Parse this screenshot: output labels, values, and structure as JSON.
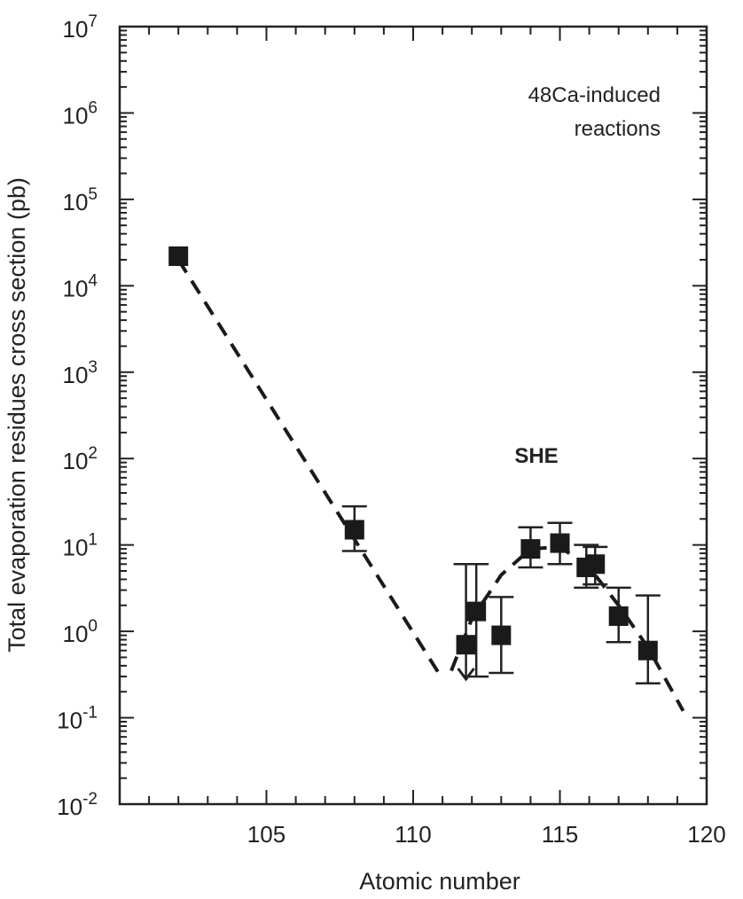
{
  "chart_data": {
    "type": "scatter",
    "xlabel": "Atomic number",
    "ylabel": "Total evaporation residues cross section  (pb)",
    "xlim": [
      100,
      120
    ],
    "ylim_log10": [
      -2,
      7
    ],
    "log_y": true,
    "x_ticks": [
      {
        "value": 105,
        "label": "105"
      },
      {
        "value": 110,
        "label": "110"
      },
      {
        "value": 115,
        "label": "115"
      },
      {
        "value": 120,
        "label": "120"
      }
    ],
    "y_ticks": [
      {
        "exp": 7,
        "base": "10",
        "sup": "7"
      },
      {
        "exp": 6,
        "base": "10",
        "sup": "6"
      },
      {
        "exp": 5,
        "base": "10",
        "sup": "5"
      },
      {
        "exp": 4,
        "base": "10",
        "sup": "4"
      },
      {
        "exp": 3,
        "base": "10",
        "sup": "3"
      },
      {
        "exp": 2,
        "base": "10",
        "sup": "2"
      },
      {
        "exp": 1,
        "base": "10",
        "sup": "1"
      },
      {
        "exp": 0,
        "base": "10",
        "sup": "0"
      },
      {
        "exp": -1,
        "base": "10",
        "sup": "-1"
      },
      {
        "exp": -2,
        "base": "10",
        "sup": "-2"
      }
    ],
    "points": [
      {
        "x": 102,
        "y": 22000
      },
      {
        "x": 108,
        "y": 15,
        "err_lo": 8.5,
        "err_hi": 28
      },
      {
        "x": 111.8,
        "y": 0.7,
        "err_lo": 0.28,
        "err_hi": 6,
        "upper_limit": true
      },
      {
        "x": 112.15,
        "y": 1.7,
        "err_lo": 0.3,
        "err_hi": 6
      },
      {
        "x": 113,
        "y": 0.9,
        "err_lo": 0.33,
        "err_hi": 2.5
      },
      {
        "x": 114,
        "y": 9,
        "err_lo": 5.5,
        "err_hi": 16
      },
      {
        "x": 115,
        "y": 10.5,
        "err_lo": 6,
        "err_hi": 18
      },
      {
        "x": 115.9,
        "y": 5.5,
        "err_lo": 3.2,
        "err_hi": 10
      },
      {
        "x": 116.2,
        "y": 6,
        "err_lo": 3.5,
        "err_hi": 9.5
      },
      {
        "x": 117,
        "y": 1.5,
        "err_lo": 0.75,
        "err_hi": 3.2
      },
      {
        "x": 118,
        "y": 0.6,
        "err_lo": 0.25,
        "err_hi": 2.6
      }
    ],
    "trend_lines": [
      {
        "style": "dashed",
        "points": [
          [
            102,
            20000
          ],
          [
            111,
            0.28
          ]
        ]
      },
      {
        "style": "dashed",
        "points": [
          [
            111.3,
            0.35
          ],
          [
            112,
            1.4
          ],
          [
            113,
            4.5
          ],
          [
            114,
            9
          ],
          [
            115,
            9.5
          ],
          [
            116,
            5.5
          ],
          [
            117,
            2
          ],
          [
            118,
            0.65
          ],
          [
            119.2,
            0.12
          ]
        ]
      }
    ],
    "annotations": {
      "reactions_line1": "48Ca-induced",
      "reactions_line2": "reactions",
      "she": "SHE"
    },
    "grid": false
  }
}
